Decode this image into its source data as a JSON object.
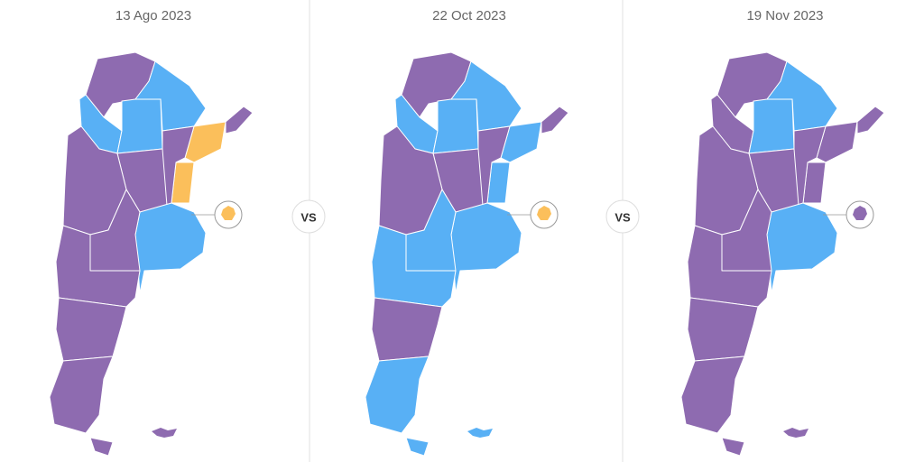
{
  "panels": [
    {
      "date": "13 Ago 2023",
      "region_colors": [
        "#8e6bb0",
        "#58b0f5",
        "#58b0f5",
        "#58b0f5",
        "#fbbf5b",
        "#8e6bb0",
        "#fbbf5b",
        "#8e6bb0",
        "#8e6bb0",
        "#8e6bb0",
        "#58b0f5",
        "#8e6bb0",
        "#8e6bb0",
        "#8e6bb0",
        "#8e6bb0",
        "#8e6bb0"
      ],
      "caba_color": "#fbbf5b",
      "islands_color": "#8e6bb0"
    },
    {
      "date": "22 Oct 2023",
      "region_colors": [
        "#8e6bb0",
        "#58b0f5",
        "#58b0f5",
        "#58b0f5",
        "#58b0f5",
        "#8e6bb0",
        "#58b0f5",
        "#8e6bb0",
        "#8e6bb0",
        "#8e6bb0",
        "#58b0f5",
        "#58b0f5",
        "#58b0f5",
        "#8e6bb0",
        "#58b0f5",
        "#58b0f5"
      ],
      "caba_color": "#fbbf5b",
      "islands_color": "#58b0f5"
    },
    {
      "date": "19 Nov 2023",
      "region_colors": [
        "#8e6bb0",
        "#58b0f5",
        "#8e6bb0",
        "#58b0f5",
        "#8e6bb0",
        "#8e6bb0",
        "#8e6bb0",
        "#8e6bb0",
        "#8e6bb0",
        "#8e6bb0",
        "#58b0f5",
        "#8e6bb0",
        "#8e6bb0",
        "#8e6bb0",
        "#8e6bb0",
        "#8e6bb0"
      ],
      "caba_color": "#8e6bb0",
      "islands_color": "#8e6bb0"
    }
  ],
  "separators": [
    "VS",
    "VS"
  ]
}
